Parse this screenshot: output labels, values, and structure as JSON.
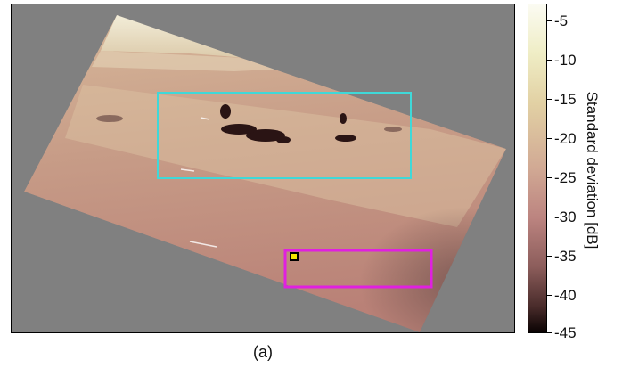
{
  "figure": {
    "caption": "(a)",
    "colorbar": {
      "label": "Standard deviation [dB]",
      "ticks": [
        "-5",
        "-10",
        "-15",
        "-20",
        "-25",
        "-30",
        "-35",
        "-40",
        "-45"
      ],
      "min": -45,
      "max": -3
    },
    "colors": {
      "background": "#808080",
      "cyan_box": "#3fd8d8",
      "magenta_box": "#e020e0",
      "marker_fill": "#f2e600",
      "marker_border": "#000000"
    }
  }
}
